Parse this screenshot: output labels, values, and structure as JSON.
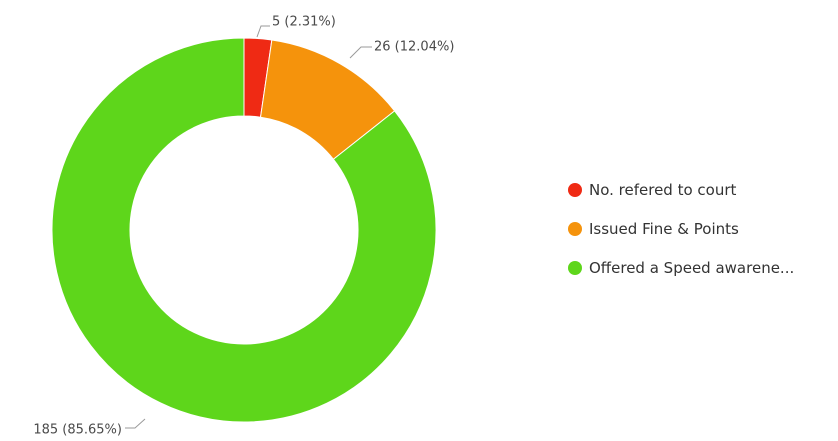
{
  "chart_data": {
    "type": "pie",
    "donut": true,
    "title": "",
    "legend_position": "right",
    "series": [
      {
        "name": "No. refered to court",
        "value": 5,
        "label": "5 (2.31%)",
        "color": "#ef2a14"
      },
      {
        "name": "Issued Fine & Points",
        "value": 26,
        "label": "26 (12.04%)",
        "color": "#f5930c"
      },
      {
        "name": "Offered a Speed awarene...",
        "value": 185,
        "label": "185 (85.65%)",
        "color": "#5ed61b"
      }
    ]
  }
}
